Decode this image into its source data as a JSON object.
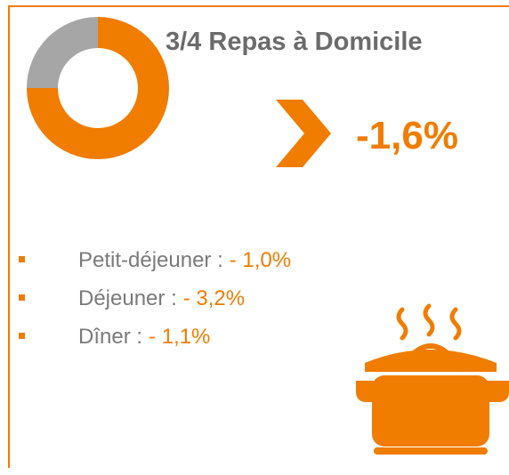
{
  "title": "3/4 Repas à Domicile",
  "change": "-1,6%",
  "items": [
    {
      "label": "Petit-déjeuner :",
      "value": "- 1,0%"
    },
    {
      "label": "Déjeuner :",
      "value": "- 3,2%"
    },
    {
      "label": "Dîner :",
      "value": "- 1,1%"
    }
  ],
  "chart_data": {
    "type": "pie",
    "donut": true,
    "values": [
      75,
      25
    ],
    "colors": [
      "#f07c00",
      "#a6a6a6"
    ]
  }
}
